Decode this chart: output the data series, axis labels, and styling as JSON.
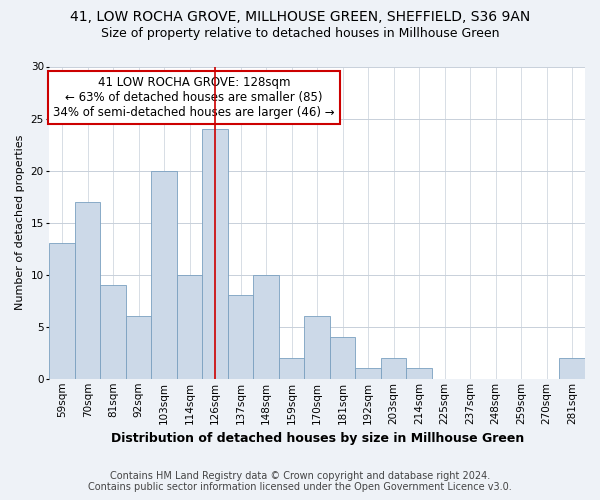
{
  "title": "41, LOW ROCHA GROVE, MILLHOUSE GREEN, SHEFFIELD, S36 9AN",
  "subtitle": "Size of property relative to detached houses in Millhouse Green",
  "xlabel": "Distribution of detached houses by size in Millhouse Green",
  "ylabel": "Number of detached properties",
  "bar_labels": [
    "59sqm",
    "70sqm",
    "81sqm",
    "92sqm",
    "103sqm",
    "114sqm",
    "126sqm",
    "137sqm",
    "148sqm",
    "159sqm",
    "170sqm",
    "181sqm",
    "192sqm",
    "203sqm",
    "214sqm",
    "225sqm",
    "237sqm",
    "248sqm",
    "259sqm",
    "270sqm",
    "281sqm"
  ],
  "bar_values": [
    13,
    17,
    9,
    6,
    20,
    10,
    24,
    8,
    10,
    2,
    6,
    4,
    1,
    2,
    1,
    0,
    0,
    0,
    0,
    0,
    2
  ],
  "bar_color": "#ccd9e8",
  "bar_edge_color": "#7aa0c0",
  "property_bin_index": 6,
  "annotation_line1": "41 LOW ROCHA GROVE: 128sqm",
  "annotation_line2": "← 63% of detached houses are smaller (85)",
  "annotation_line3": "34% of semi-detached houses are larger (46) →",
  "annotation_box_color": "#ffffff",
  "annotation_border_color": "#cc0000",
  "vline_color": "#cc0000",
  "ylim": [
    0,
    30
  ],
  "yticks": [
    0,
    5,
    10,
    15,
    20,
    25,
    30
  ],
  "footer1": "Contains HM Land Registry data © Crown copyright and database right 2024.",
  "footer2": "Contains public sector information licensed under the Open Government Licence v3.0.",
  "background_color": "#eef2f7",
  "plot_background_color": "#ffffff",
  "grid_color": "#c8d0da",
  "title_fontsize": 10,
  "subtitle_fontsize": 9,
  "xlabel_fontsize": 9,
  "ylabel_fontsize": 8,
  "tick_fontsize": 7.5,
  "footer_fontsize": 7,
  "annot_fontsize": 8.5
}
